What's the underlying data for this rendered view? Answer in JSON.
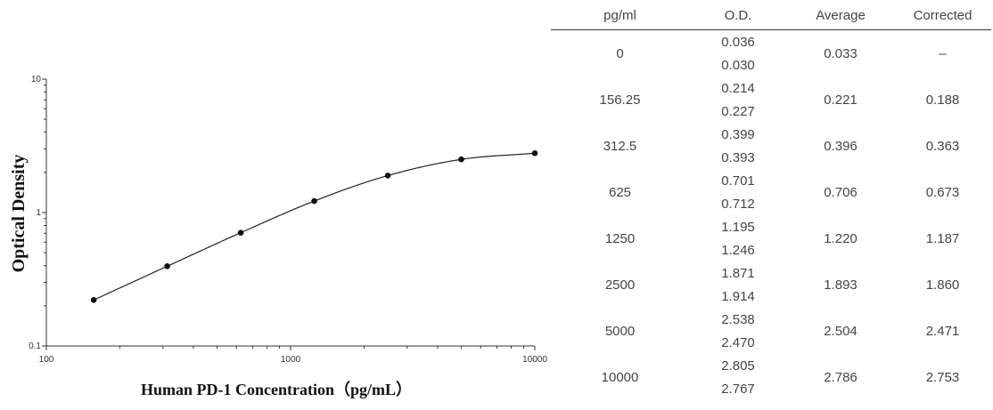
{
  "chart_data": {
    "type": "scatter",
    "xlabel": "Human PD-1 Concentration（pg/mL）",
    "ylabel": "Optical Density",
    "x_scale": "log",
    "y_scale": "log",
    "xlim": [
      100,
      10000
    ],
    "ylim": [
      0.1,
      10
    ],
    "x_ticks": [
      "100",
      "1000",
      "10000"
    ],
    "y_ticks": [
      "0.1",
      "1",
      "10"
    ],
    "grid": false,
    "series": [
      {
        "points": [
          {
            "x": 156.25,
            "y": 0.221
          },
          {
            "x": 312.5,
            "y": 0.396
          },
          {
            "x": 625,
            "y": 0.706
          },
          {
            "x": 1250,
            "y": 1.22
          },
          {
            "x": 2500,
            "y": 1.893
          },
          {
            "x": 5000,
            "y": 2.504
          },
          {
            "x": 10000,
            "y": 2.786
          }
        ],
        "fit_curve": "4PL"
      }
    ]
  },
  "table": {
    "headers": [
      "pg/ml",
      "O.D.",
      "Average",
      "Corrected"
    ],
    "rows": [
      {
        "conc": "0",
        "od": [
          "0.036",
          "0.030"
        ],
        "average": "0.033",
        "corrected": "–"
      },
      {
        "conc": "156.25",
        "od": [
          "0.214",
          "0.227"
        ],
        "average": "0.221",
        "corrected": "0.188"
      },
      {
        "conc": "312.5",
        "od": [
          "0.399",
          "0.393"
        ],
        "average": "0.396",
        "corrected": "0.363"
      },
      {
        "conc": "625",
        "od": [
          "0.701",
          "0.712"
        ],
        "average": "0.706",
        "corrected": "0.673"
      },
      {
        "conc": "1250",
        "od": [
          "1.195",
          "1.246"
        ],
        "average": "1.220",
        "corrected": "1.187"
      },
      {
        "conc": "2500",
        "od": [
          "1.871",
          "1.914"
        ],
        "average": "1.893",
        "corrected": "1.860"
      },
      {
        "conc": "5000",
        "od": [
          "2.538",
          "2.470"
        ],
        "average": "2.504",
        "corrected": "2.471"
      },
      {
        "conc": "10000",
        "od": [
          "2.805",
          "2.767"
        ],
        "average": "2.786",
        "corrected": "2.753"
      }
    ]
  }
}
